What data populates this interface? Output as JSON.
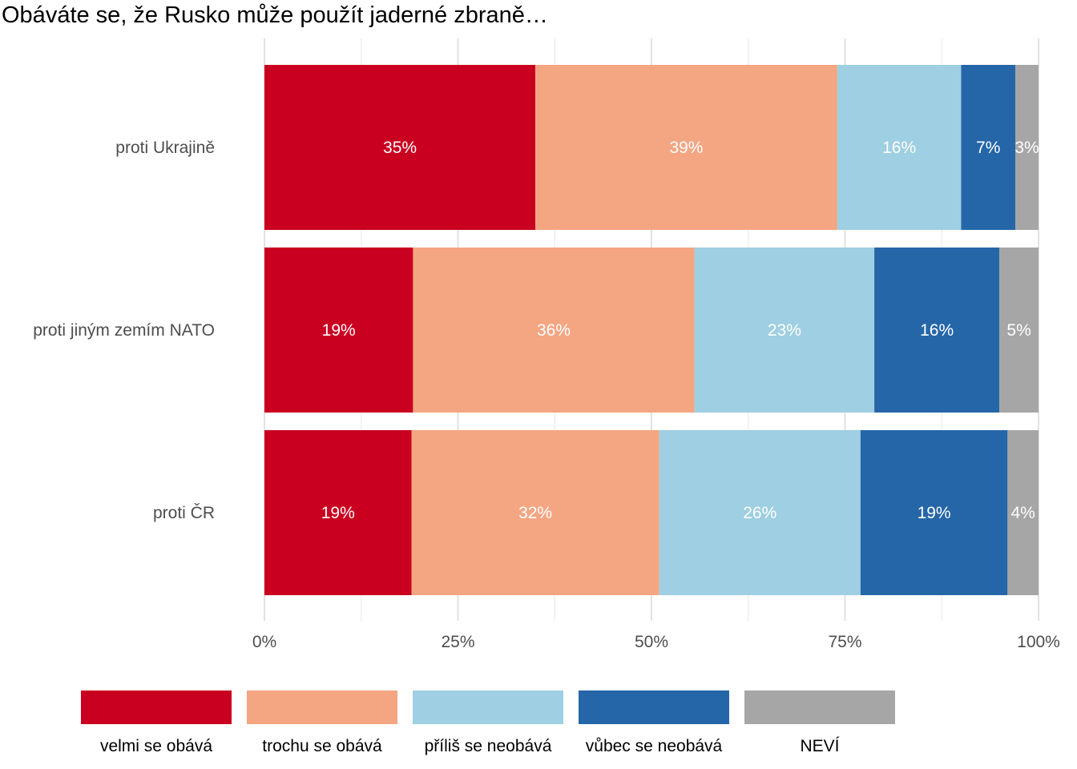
{
  "chart_data": {
    "type": "bar",
    "orientation": "horizontal",
    "stacked": true,
    "title": "Obáváte se, že Rusko může použít jaderné zbraně…",
    "categories": [
      "proti Ukrajině",
      "proti jiným zemím NATO",
      "proti ČR"
    ],
    "series": [
      {
        "name": "velmi se obává",
        "color": "#ca0020",
        "values": [
          35,
          19,
          19
        ],
        "labels": [
          "35%",
          "19%",
          "19%"
        ]
      },
      {
        "name": "trochu se obává",
        "color": "#f4a582",
        "values": [
          39,
          36,
          32
        ],
        "labels": [
          "39%",
          "36%",
          "32%"
        ]
      },
      {
        "name": "příliš se neobává",
        "color": "#9ecfe2",
        "values": [
          16,
          23,
          26
        ],
        "labels": [
          "16%",
          "23%",
          "26%"
        ]
      },
      {
        "name": "vůbec se neobává",
        "color": "#2566a8",
        "values": [
          7,
          16,
          19
        ],
        "labels": [
          "7%",
          "16%",
          "19%"
        ]
      },
      {
        "name": "NEVÍ",
        "color": "#a6a6a6",
        "values": [
          3,
          5,
          4
        ],
        "labels": [
          "3%",
          "5%",
          "4%"
        ]
      }
    ],
    "xlim": [
      0,
      100
    ],
    "xticks": [
      0,
      25,
      50,
      75,
      100
    ],
    "xtick_labels": [
      "0%",
      "25%",
      "50%",
      "75%",
      "100%"
    ],
    "grid": true,
    "legend_position": "bottom"
  }
}
